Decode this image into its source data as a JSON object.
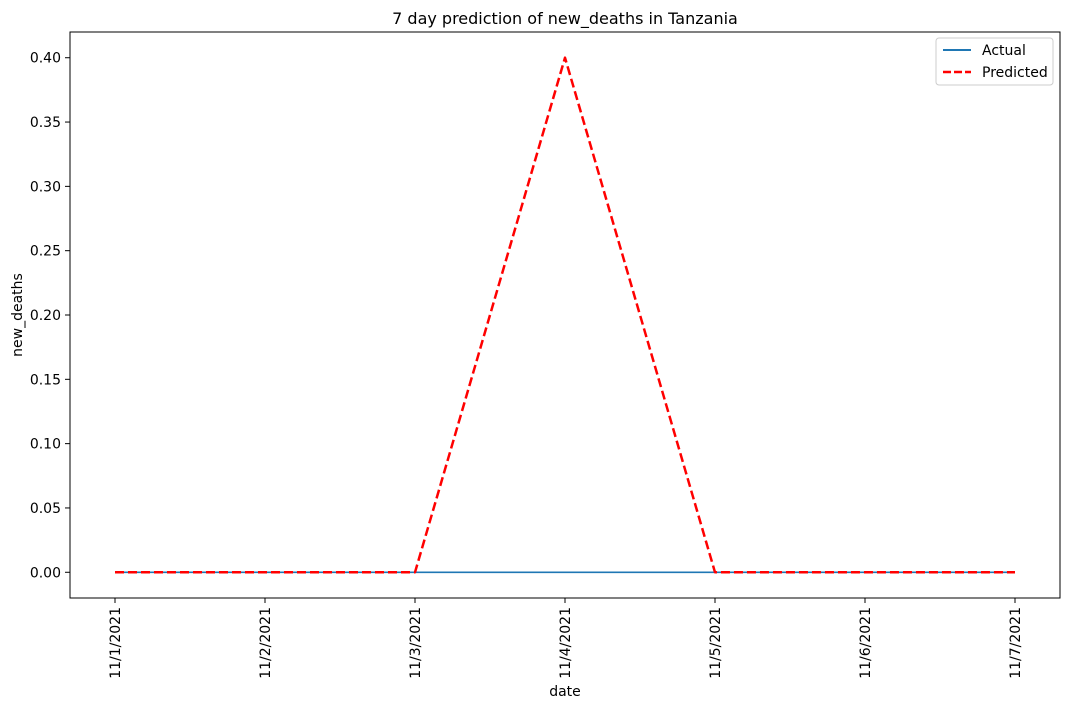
{
  "chart_data": {
    "type": "line",
    "title": "7 day prediction of new_deaths in Tanzania",
    "xlabel": "date",
    "ylabel": "new_deaths",
    "x": [
      "11/1/2021",
      "11/2/2021",
      "11/3/2021",
      "11/4/2021",
      "11/5/2021",
      "11/6/2021",
      "11/7/2021"
    ],
    "yticks": [
      "0.00",
      "0.05",
      "0.10",
      "0.15",
      "0.20",
      "0.25",
      "0.30",
      "0.35",
      "0.40"
    ],
    "ylim": [
      -0.02,
      0.42
    ],
    "grid": false,
    "legend_position": "top-right",
    "series": [
      {
        "name": "Actual",
        "values": [
          0,
          0,
          0,
          0,
          0,
          0,
          0
        ],
        "color": "#1f77b4",
        "style": "solid"
      },
      {
        "name": "Predicted",
        "values": [
          0,
          0,
          0,
          0.4,
          0,
          0,
          0
        ],
        "color": "#ff0000",
        "style": "dashed"
      }
    ]
  }
}
